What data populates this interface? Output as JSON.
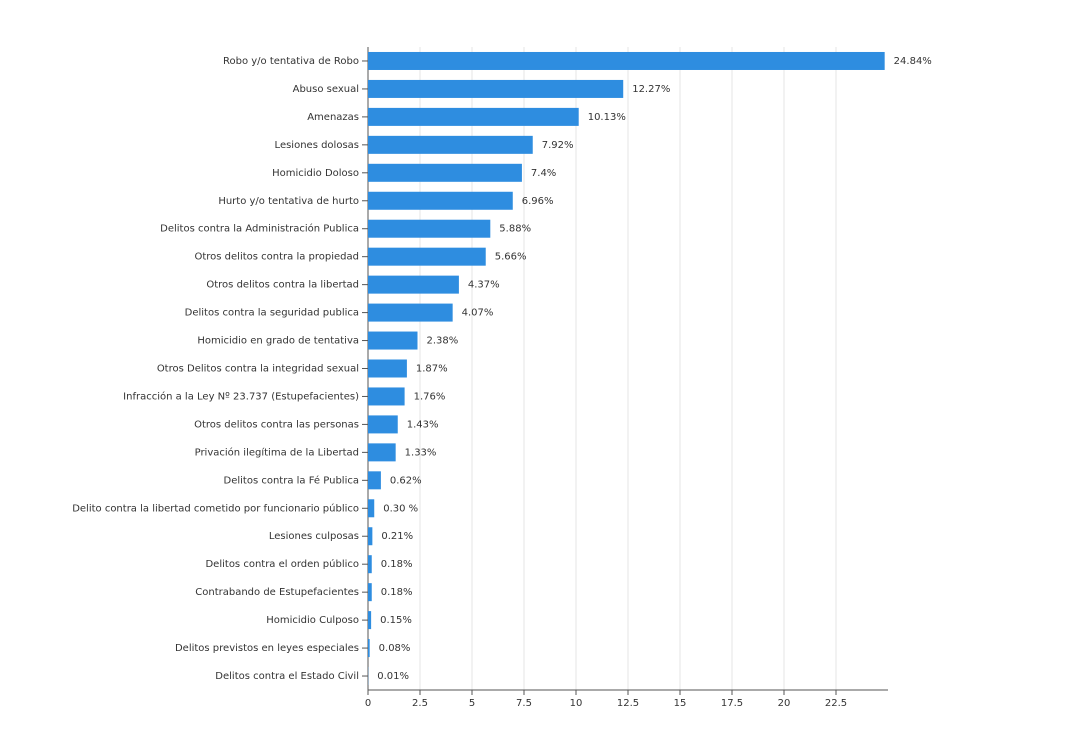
{
  "chart_data": {
    "type": "bar",
    "orientation": "horizontal",
    "categories": [
      "Robo y/o tentativa de Robo",
      "Abuso sexual",
      "Amenazas",
      "Lesiones dolosas",
      "Homicidio Doloso",
      "Hurto y/o tentativa de hurto",
      "Delitos contra la Administración Publica",
      "Otros delitos contra la propiedad",
      "Otros delitos contra la libertad",
      "Delitos contra la seguridad publica",
      "Homicidio en grado de tentativa",
      "Otros Delitos contra la integridad sexual",
      "Infracción a la Ley Nº 23.737 (Estupefacientes)",
      "Otros delitos contra las personas",
      "Privación ilegítima de la Libertad",
      "Delitos contra la Fé Publica",
      "Delito contra la libertad cometido por funcionario público",
      "Lesiones culposas",
      "Delitos contra el orden público",
      "Contrabando de Estupefacientes",
      "Homicidio Culposo",
      "Delitos previstos en leyes especiales",
      "Delitos contra el Estado Civil"
    ],
    "values": [
      24.84,
      12.27,
      10.13,
      7.92,
      7.4,
      6.96,
      5.88,
      5.66,
      4.37,
      4.07,
      2.38,
      1.87,
      1.76,
      1.43,
      1.33,
      0.62,
      0.3,
      0.21,
      0.18,
      0.18,
      0.15,
      0.08,
      0.01
    ],
    "value_labels": [
      "24.84%",
      "12.27%",
      "10.13%",
      "7.92%",
      "7.4%",
      "6.96%",
      "5.88%",
      "5.66%",
      "4.37%",
      "4.07%",
      "2.38%",
      "1.87%",
      "1.76%",
      "1.43%",
      "1.33%",
      "0.62%",
      "0.30 %",
      "0.21%",
      "0.18%",
      "0.18%",
      "0.15%",
      "0.08%",
      "0.01%"
    ],
    "color": "#2e8de0",
    "xlim": [
      0,
      25
    ],
    "xticks": [
      0,
      2.5,
      5,
      7.5,
      10,
      12.5,
      15,
      17.5,
      20,
      22.5
    ],
    "grid": true
  }
}
